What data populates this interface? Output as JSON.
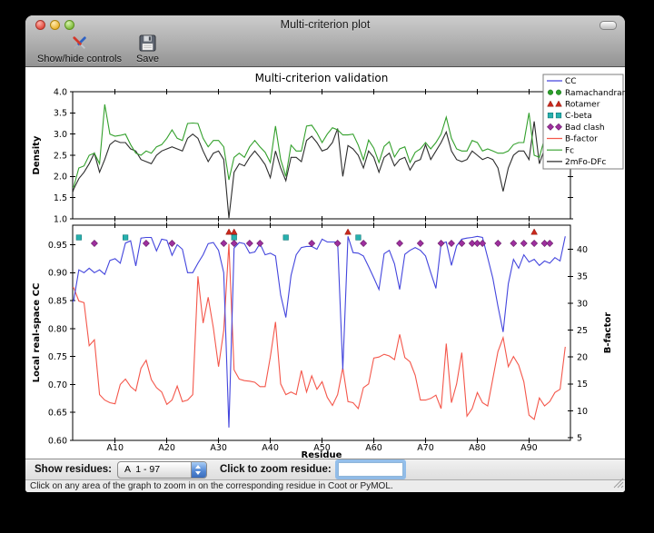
{
  "window": {
    "title": "Multi-criterion plot"
  },
  "toolbar": {
    "items": [
      {
        "name": "show-hide-controls",
        "label": "Show/hide controls",
        "icon": "tools-icon"
      },
      {
        "name": "save",
        "label": "Save",
        "icon": "save-icon"
      }
    ]
  },
  "chart_data": [
    {
      "type": "line",
      "title": "Multi-criterion validation",
      "ylabel": "Density",
      "ylim": [
        1.0,
        4.0
      ],
      "yticks": [
        1.0,
        1.5,
        2.0,
        2.5,
        3.0,
        3.5,
        4.0
      ],
      "x_range": [
        1,
        97
      ],
      "grid": false,
      "series": [
        {
          "name": "Fc",
          "color": "#33a02c",
          "values": [
            1.7,
            1.75,
            2.2,
            2.25,
            2.5,
            2.55,
            2.3,
            3.7,
            3.0,
            2.95,
            2.97,
            3.0,
            2.75,
            2.55,
            2.5,
            2.6,
            2.55,
            2.7,
            2.75,
            2.9,
            3.1,
            2.9,
            2.85,
            3.25,
            3.26,
            3.25,
            2.9,
            2.7,
            2.85,
            2.85,
            2.7,
            1.92,
            2.45,
            2.55,
            2.45,
            2.7,
            2.85,
            2.7,
            2.57,
            2.33,
            3.19,
            2.4,
            2.0,
            2.74,
            2.6,
            2.6,
            3.19,
            3.21,
            3.03,
            2.8,
            3.0,
            3.15,
            3.1,
            2.98,
            2.98,
            3.0,
            2.74,
            2.39,
            2.86,
            2.67,
            2.33,
            2.71,
            2.82,
            2.46,
            2.65,
            2.7,
            2.33,
            2.57,
            2.65,
            2.8,
            2.65,
            2.8,
            3.0,
            3.4,
            2.9,
            2.65,
            2.6,
            2.6,
            2.85,
            2.8,
            2.6,
            2.65,
            2.6,
            2.55,
            2.55,
            2.6,
            2.75,
            2.8,
            2.8,
            3.5,
            2.5,
            2.45,
            2.9,
            2.6,
            2.7,
            3.3,
            3.15
          ]
        },
        {
          "name": "2mFo-DFc",
          "color": "#2d2d2d",
          "values": [
            1.3,
            1.7,
            1.95,
            2.1,
            2.3,
            2.55,
            2.1,
            2.4,
            2.75,
            2.85,
            2.8,
            2.8,
            2.65,
            2.6,
            2.4,
            2.35,
            2.3,
            2.5,
            2.6,
            2.65,
            2.7,
            2.65,
            2.6,
            2.9,
            3.0,
            2.9,
            2.6,
            2.35,
            2.55,
            2.6,
            2.4,
            1.02,
            2.1,
            2.3,
            2.25,
            2.45,
            2.6,
            2.45,
            2.28,
            1.97,
            2.6,
            2.2,
            1.9,
            2.45,
            2.45,
            2.35,
            2.85,
            2.95,
            2.8,
            2.6,
            2.65,
            2.8,
            3.13,
            2.0,
            2.73,
            2.65,
            2.5,
            2.2,
            2.6,
            2.45,
            2.1,
            2.45,
            2.55,
            2.25,
            2.4,
            2.45,
            2.15,
            2.35,
            2.4,
            2.75,
            2.4,
            2.6,
            2.8,
            3.05,
            2.6,
            2.4,
            2.35,
            2.4,
            2.6,
            2.5,
            2.4,
            2.45,
            2.4,
            2.2,
            1.65,
            2.2,
            2.5,
            2.6,
            2.6,
            2.4,
            3.3,
            2.3,
            2.65,
            2.4,
            2.55,
            2.95,
            2.5
          ]
        }
      ]
    },
    {
      "type": "line",
      "xlabel": "Residue",
      "xticks": {
        "values": [
          10,
          20,
          30,
          40,
          50,
          60,
          70,
          80,
          90
        ],
        "labels": [
          "A10",
          "A20",
          "A30",
          "A40",
          "A50",
          "A60",
          "A70",
          "A80",
          "A90"
        ]
      },
      "ylabel_left": "Local real-space CC",
      "ylim_left": [
        0.6,
        0.985
      ],
      "yticks_left": [
        0.6,
        0.65,
        0.7,
        0.75,
        0.8,
        0.85,
        0.9,
        0.95
      ],
      "ylabel_right": "B-factor",
      "ylim_right": [
        4.5,
        44.5
      ],
      "yticks_right": [
        5,
        10,
        15,
        20,
        25,
        30,
        35,
        40
      ],
      "x_range": [
        1,
        97
      ],
      "grid": false,
      "series": [
        {
          "name": "CC",
          "axis": "left",
          "color": "#4345dd",
          "values": [
            0.84,
            0.85,
            0.905,
            0.9,
            0.908,
            0.9,
            0.905,
            0.897,
            0.922,
            0.925,
            0.917,
            0.953,
            0.957,
            0.912,
            0.962,
            0.963,
            0.963,
            0.939,
            0.96,
            0.958,
            0.931,
            0.95,
            0.942,
            0.9,
            0.9,
            0.917,
            0.932,
            0.952,
            0.954,
            0.94,
            0.9,
            0.623,
            0.944,
            0.954,
            0.952,
            0.935,
            0.937,
            0.952,
            0.932,
            0.935,
            0.93,
            0.86,
            0.82,
            0.895,
            0.932,
            0.945,
            0.947,
            0.947,
            0.942,
            0.96,
            0.955,
            0.955,
            0.955,
            0.727,
            0.965,
            0.936,
            0.935,
            0.93,
            0.911,
            0.891,
            0.87,
            0.934,
            0.94,
            0.916,
            0.87,
            0.933,
            0.94,
            0.945,
            0.94,
            0.93,
            0.9,
            0.872,
            0.952,
            0.955,
            0.913,
            0.948,
            0.96,
            0.962,
            0.963,
            0.965,
            0.963,
            0.927,
            0.89,
            0.84,
            0.794,
            0.88,
            0.924,
            0.908,
            0.932,
            0.919,
            0.924,
            0.913,
            0.921,
            0.917,
            0.927,
            0.921,
            0.965
          ]
        },
        {
          "name": "B-factor",
          "axis": "right",
          "color": "#f4574b",
          "values": [
            33.0,
            32.9,
            30.4,
            30.1,
            22.1,
            23.2,
            13.0,
            12.0,
            11.5,
            11.3,
            14.9,
            15.9,
            14.5,
            13.7,
            17.9,
            19.4,
            15.8,
            14.3,
            13.5,
            11.2,
            12.0,
            14.6,
            11.7,
            12.0,
            13.0,
            35.0,
            26.3,
            31.1,
            25.4,
            18.2,
            24.9,
            41.0,
            17.6,
            15.9,
            15.6,
            15.5,
            15.3,
            14.5,
            14.5,
            20.0,
            26.5,
            15.0,
            13.0,
            13.5,
            13.0,
            17.5,
            13.5,
            16.5,
            14.0,
            15.4,
            12.5,
            11.0,
            13.0,
            18.0,
            11.7,
            11.5,
            10.4,
            14.3,
            15.0,
            19.8,
            20.0,
            20.5,
            20.2,
            19.5,
            24.2,
            19.9,
            19.1,
            16.6,
            12.0,
            12.0,
            12.3,
            12.9,
            10.4,
            22.5,
            11.5,
            15.0,
            20.8,
            9.0,
            10.4,
            13.4,
            11.5,
            10.9,
            16.0,
            21.0,
            23.6,
            18.2,
            20.1,
            18.5,
            15.4,
            9.2,
            8.4,
            12.4,
            10.9,
            11.7,
            13.4,
            14.0,
            21.9
          ]
        }
      ],
      "outlier_markers": {
        "ramachandran": {
          "shape": "circle",
          "color": "#2b9e2b",
          "row_cc": 0.979,
          "residues": []
        },
        "rotamer": {
          "shape": "triangle",
          "color": "#c9281c",
          "row_cc": 0.973,
          "residues": [
            32,
            33,
            55,
            91
          ]
        },
        "c_beta": {
          "shape": "square",
          "color": "#27b0ae",
          "row_cc": 0.963,
          "residues": [
            3,
            12,
            33,
            43,
            57
          ]
        },
        "bad_clash": {
          "shape": "diamond",
          "color": "#9e2f9e",
          "row_cc": 0.9525,
          "residues": [
            6,
            16,
            21,
            31,
            33,
            36,
            38,
            48,
            53,
            58,
            65,
            69,
            73,
            75,
            77,
            79,
            80,
            81,
            84,
            87,
            89,
            91,
            93,
            94
          ]
        }
      }
    }
  ],
  "legend": {
    "position": "upper right",
    "entries": [
      {
        "label": "CC",
        "glyph": "line",
        "color": "#4345dd"
      },
      {
        "label": "Ramachandran",
        "glyph": "circles",
        "color": "#2b9e2b"
      },
      {
        "label": "Rotamer",
        "glyph": "triangles",
        "color": "#c9281c"
      },
      {
        "label": "C-beta",
        "glyph": "squares",
        "color": "#27b0ae"
      },
      {
        "label": "Bad clash",
        "glyph": "diamonds",
        "color": "#9e2f9e"
      },
      {
        "label": "B-factor",
        "glyph": "line",
        "color": "#f4574b"
      },
      {
        "label": "Fc",
        "glyph": "line",
        "color": "#33a02c"
      },
      {
        "label": "2mFo-DFc",
        "glyph": "line",
        "color": "#2d2d2d"
      }
    ]
  },
  "controls": {
    "show_residues_label": "Show residues:",
    "popup_value": "A  1 - 97",
    "zoom_label": "Click to zoom residue:",
    "zoom_value": ""
  },
  "status": {
    "text": "Click on any area of the graph to zoom in on the corresponding residue in Coot or PyMOL."
  }
}
